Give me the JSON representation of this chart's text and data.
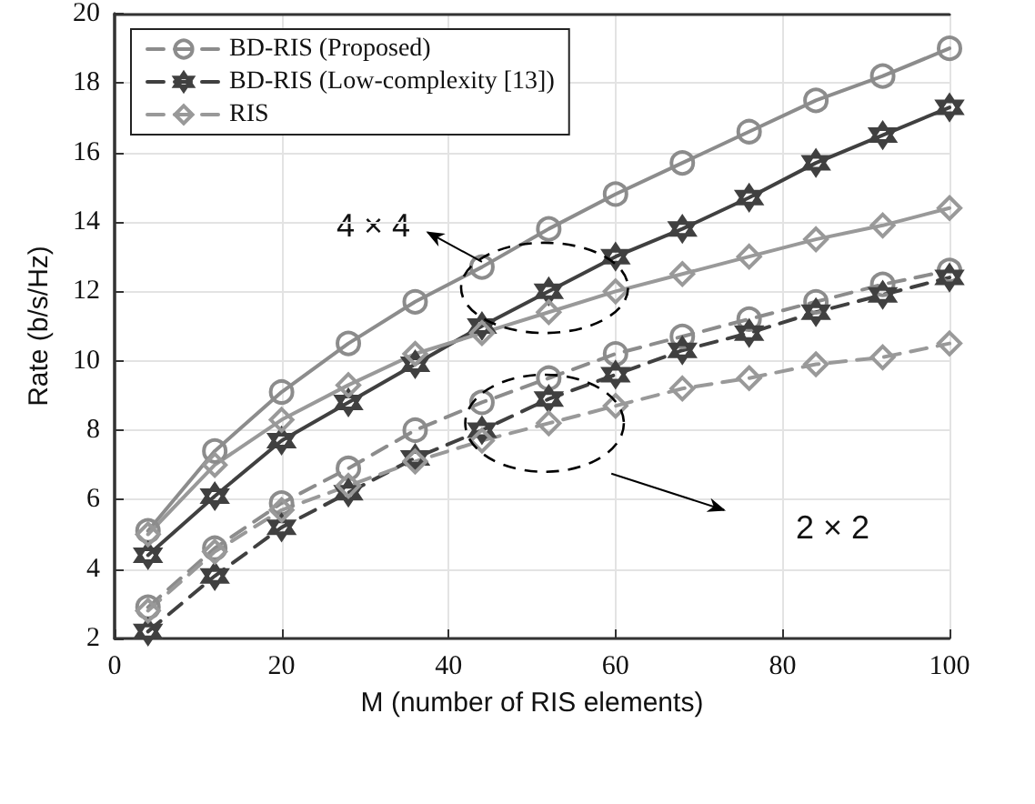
{
  "chart_data": {
    "type": "line",
    "xlabel": "M (number of RIS elements)",
    "ylabel": "Rate (b/s/Hz)",
    "x": [
      4,
      12,
      20,
      28,
      36,
      44,
      52,
      60,
      68,
      76,
      84,
      92,
      100
    ],
    "xlim": [
      0,
      100
    ],
    "xticks": [
      0,
      20,
      40,
      60,
      80,
      100
    ],
    "ylim": [
      2,
      20
    ],
    "yticks": [
      2,
      4,
      6,
      8,
      10,
      12,
      14,
      16,
      18,
      20
    ],
    "grid": true,
    "legend": "top left",
    "series": [
      {
        "name": "BD-RIS (Proposed)",
        "color": "#8c8c8c",
        "marker": "circle",
        "line_style": "dashed",
        "values": [
          2.9,
          4.6,
          5.9,
          6.9,
          8.0,
          8.8,
          9.5,
          10.2,
          10.7,
          11.2,
          11.7,
          12.2,
          12.6
        ]
      },
      {
        "name": "BD-RIS (Low-complexity [13])",
        "color": "#404040",
        "marker": "star",
        "line_style": "dashed",
        "values": [
          2.2,
          3.8,
          5.2,
          6.2,
          7.2,
          8.0,
          8.9,
          9.6,
          10.3,
          10.8,
          11.4,
          11.9,
          12.4
        ]
      },
      {
        "name": "RIS",
        "color": "#999999",
        "marker": "diamond",
        "line_style": "dashed",
        "values": [
          2.8,
          4.5,
          5.7,
          6.4,
          7.1,
          7.7,
          8.2,
          8.7,
          9.2,
          9.5,
          9.9,
          10.1,
          10.5
        ]
      },
      {
        "color": "#8c8c8c",
        "marker": "circle",
        "line_style": "solid",
        "values": [
          5.1,
          7.4,
          9.1,
          10.5,
          11.7,
          12.7,
          13.8,
          14.8,
          15.7,
          16.6,
          17.5,
          18.2,
          19.0
        ]
      },
      {
        "color": "#404040",
        "marker": "star",
        "line_style": "solid",
        "values": [
          4.4,
          6.1,
          7.7,
          8.8,
          9.9,
          11.0,
          12.0,
          13.0,
          13.8,
          14.7,
          15.7,
          16.5,
          17.3
        ]
      },
      {
        "color": "#999999",
        "marker": "diamond",
        "line_style": "solid",
        "values": [
          5.0,
          7.0,
          8.3,
          9.3,
          10.2,
          10.8,
          11.4,
          12.0,
          12.5,
          13.0,
          13.5,
          13.9,
          14.4
        ]
      }
    ],
    "annotations": [
      "4 × 4",
      "2 × 2"
    ]
  }
}
